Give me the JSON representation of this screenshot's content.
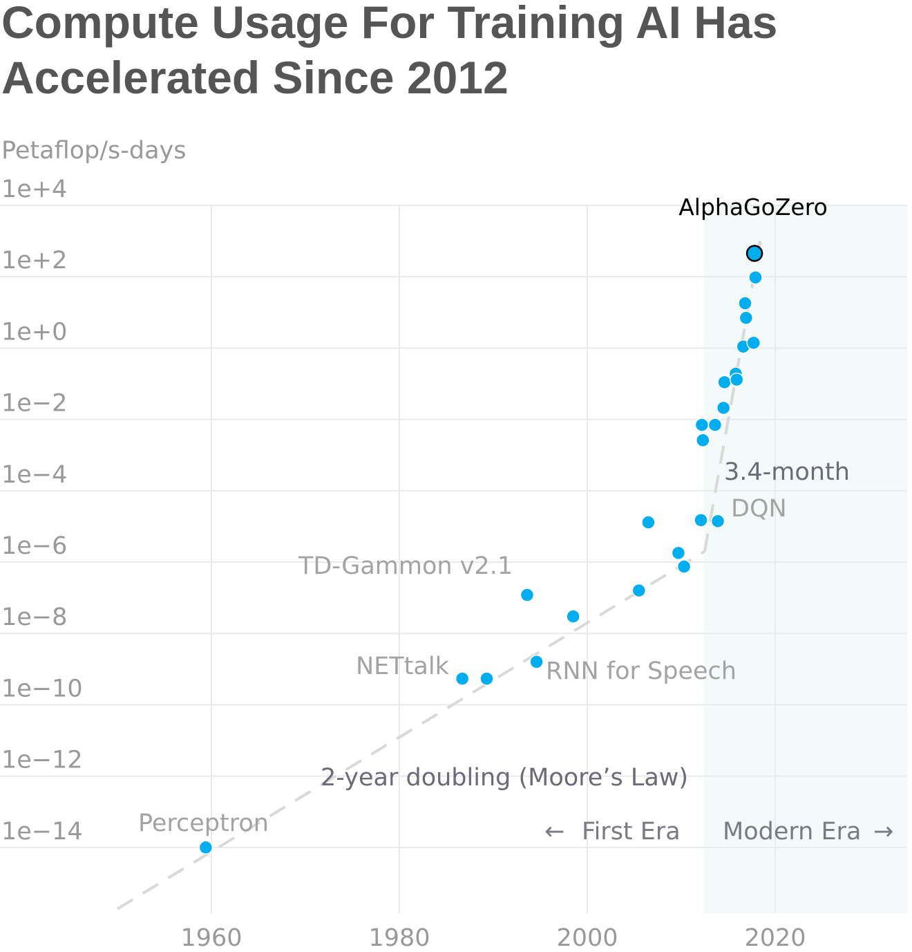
{
  "chart_data": {
    "type": "scatter",
    "title": "Compute Usage For Training AI Has Accelerated Since 2012",
    "ylabel": "Petaflop/s-days",
    "y_scale": "log10",
    "ylim": [
      1e-16,
      10000.0
    ],
    "xlim": [
      1939,
      2034
    ],
    "grid": true,
    "x_ticks": [
      {
        "value": 1960,
        "label": "1960"
      },
      {
        "value": 1980,
        "label": "1980"
      },
      {
        "value": 2000,
        "label": "2000"
      },
      {
        "value": 2020,
        "label": "2020"
      }
    ],
    "y_ticks": [
      {
        "value": 10000.0,
        "label": "1e+4"
      },
      {
        "value": 100.0,
        "label": "1e+2"
      },
      {
        "value": 1.0,
        "label": "1e+0"
      },
      {
        "value": 0.01,
        "label": "1e−2"
      },
      {
        "value": 0.0001,
        "label": "1e−4"
      },
      {
        "value": 1e-06,
        "label": "1e−6"
      },
      {
        "value": 1e-08,
        "label": "1e−8"
      },
      {
        "value": 1e-10,
        "label": "1e−10"
      },
      {
        "value": 1e-12,
        "label": "1e−12"
      },
      {
        "value": 1e-14,
        "label": "1e−14"
      }
    ],
    "points": [
      {
        "x": 1959.4,
        "y": 1e-14
      },
      {
        "x": 1986.7,
        "y": 5.4e-10
      },
      {
        "x": 1989.3,
        "y": 5.4e-10
      },
      {
        "x": 1993.6,
        "y": 1.2e-07
      },
      {
        "x": 1994.6,
        "y": 1.6e-09
      },
      {
        "x": 1998.5,
        "y": 3e-08
      },
      {
        "x": 2005.5,
        "y": 1.6e-07
      },
      {
        "x": 2006.5,
        "y": 1.3e-05
      },
      {
        "x": 2009.7,
        "y": 1.8e-06
      },
      {
        "x": 2010.3,
        "y": 7.5e-07
      },
      {
        "x": 2012.1,
        "y": 1.5e-05
      },
      {
        "x": 2012.2,
        "y": 0.007
      },
      {
        "x": 2012.3,
        "y": 0.0026
      },
      {
        "x": 2013.6,
        "y": 0.007
      },
      {
        "x": 2013.9,
        "y": 1.4e-05
      },
      {
        "x": 2014.5,
        "y": 0.021
      },
      {
        "x": 2014.6,
        "y": 0.11
      },
      {
        "x": 2015.8,
        "y": 0.19
      },
      {
        "x": 2015.9,
        "y": 0.13
      },
      {
        "x": 2016.6,
        "y": 1.1
      },
      {
        "x": 2016.8,
        "y": 18.0
      },
      {
        "x": 2016.9,
        "y": 7.0
      },
      {
        "x": 2017.7,
        "y": 1.4
      },
      {
        "x": 2017.9,
        "y": 95.0
      },
      {
        "x": 2017.8,
        "y": 450.0,
        "highlight": true
      }
    ],
    "annotations": [
      {
        "text": "AlphaGoZero"
      },
      {
        "text": "3.4-month"
      },
      {
        "text": "DQN"
      },
      {
        "text": "TD-Gammon v2.1"
      },
      {
        "text": "NETtalk"
      },
      {
        "text": "RNN for Speech"
      },
      {
        "text": "2-year doubling (Moore’s Law)"
      },
      {
        "text": "Perceptron"
      }
    ],
    "trend_lines": [
      {
        "x": [
          1950,
          2012.5
        ],
        "y": [
          1.9e-16,
          2e-06
        ]
      },
      {
        "x": [
          2012.5,
          2018.6
        ],
        "y": [
          2e-06,
          2000.0
        ]
      }
    ],
    "eras": {
      "boundary_x": 2012.4,
      "first_label": "First Era",
      "modern_label": "Modern Era",
      "first_arrow": "←",
      "modern_arrow": "→"
    },
    "colors": {
      "point": "#00aeef",
      "grid": "#e8eaec",
      "modern_band": "#f4f9f9",
      "trend": "#d9d9d9"
    }
  }
}
